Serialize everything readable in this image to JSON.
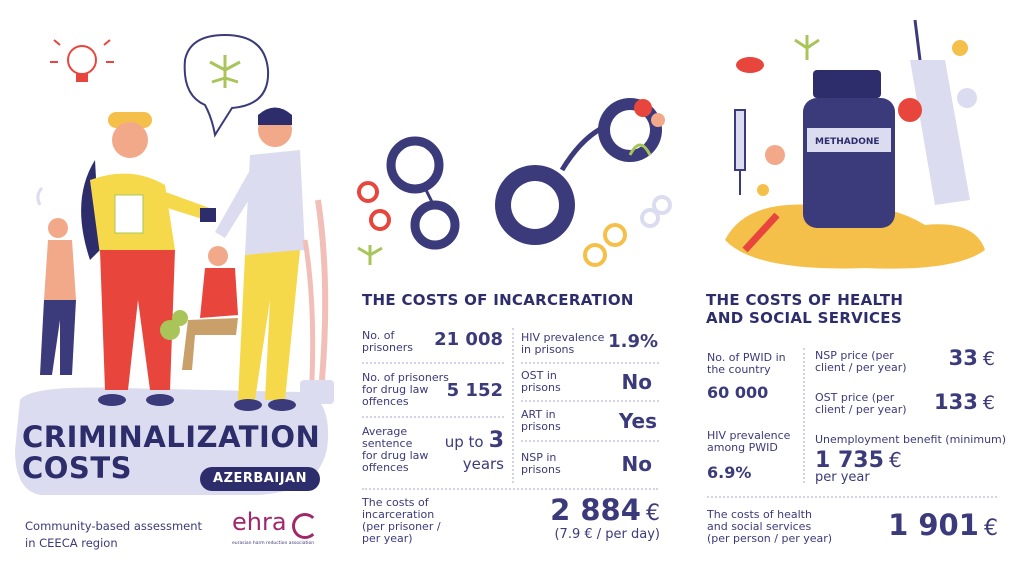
{
  "title": {
    "line1": "CRIMINALIZATION",
    "line2": "COSTS",
    "country": "AZERBAIJAN"
  },
  "footer": {
    "line1": "Community-based assessment",
    "line2": "in CEECA region",
    "logo_text": "ehra",
    "logo_sub": "eurasian harm reduction association"
  },
  "incarceration": {
    "heading": "THE COSTS OF INCARCERATION",
    "prisoners_label": [
      "No. of",
      "prisoners"
    ],
    "prisoners_value": "21 008",
    "drug_prisoners_label": [
      "No. of prisoners",
      "for drug law",
      "offences"
    ],
    "drug_prisoners_value": "5 152",
    "sentence_label": [
      "Average",
      "sentence",
      "for drug law",
      "offences"
    ],
    "sentence_prefix": "up to",
    "sentence_number": "3",
    "sentence_unit": "years",
    "hiv_label": [
      "HIV prevalence",
      "in prisons"
    ],
    "hiv_value": "1.9%",
    "ost_label": [
      "OST in",
      "prisons"
    ],
    "ost_value": "No",
    "art_label": [
      "ART in",
      "prisons"
    ],
    "art_value": "Yes",
    "nsp_label": [
      "NSP in",
      "prisons"
    ],
    "nsp_value": "No",
    "cost_label": [
      "The costs of",
      "incarceration",
      "(per prisoner /",
      "per year)"
    ],
    "cost_value": "2 884",
    "cost_currency": "€",
    "cost_sub": "(7.9 € / per day)"
  },
  "health": {
    "heading_line1": "THE COSTS OF HEALTH",
    "heading_line2": "AND SOCIAL SERVICES",
    "pwid_label": [
      "No. of PWID in",
      "the country"
    ],
    "pwid_value": "60 000",
    "hiv_label": [
      "HIV prevalence",
      "among PWID"
    ],
    "hiv_value": "6.9%",
    "nsp_label": [
      "NSP price (per",
      "client / per year)"
    ],
    "nsp_value": "33",
    "ost_label": [
      "OST price (per",
      "client / per year)"
    ],
    "ost_value": "133",
    "currency": "€",
    "unemp_label": "Unemployment benefit (minimum)",
    "unemp_value": "1 735",
    "unemp_sub": "per year",
    "total_label": [
      "The costs of health",
      "and social services",
      "(per person / per year)"
    ],
    "total_value": "1 901"
  },
  "illustration": {
    "methadone_label": "METHADONE"
  },
  "colors": {
    "navy": "#3b3a7a",
    "lavender": "#dcdcf0",
    "red": "#e8463c",
    "yellow": "#f5c04a",
    "green": "#a9c55a"
  }
}
